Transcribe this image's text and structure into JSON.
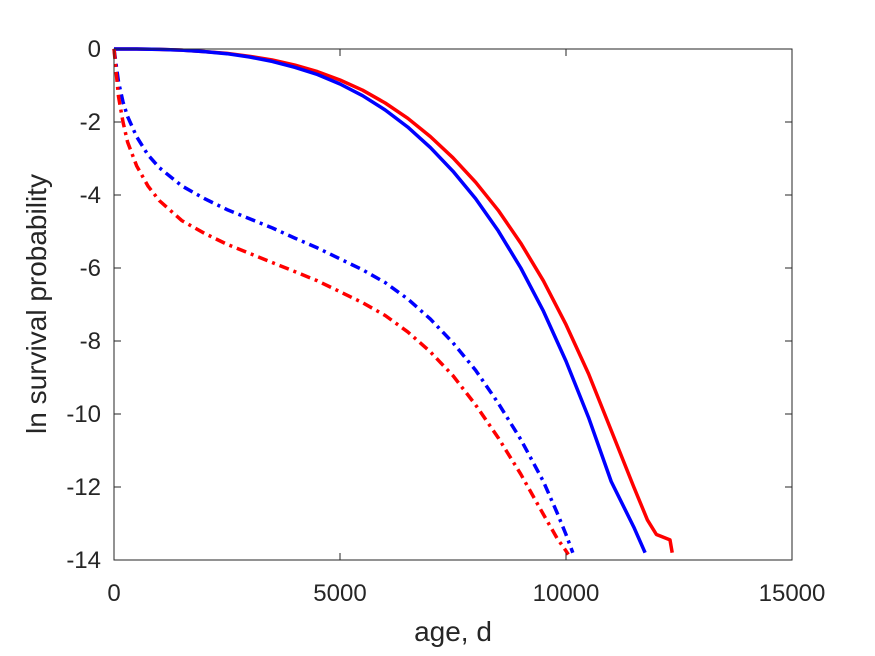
{
  "chart_data": {
    "type": "line",
    "title": "",
    "xlabel": "age, d",
    "ylabel": "ln survival probability",
    "xlim": [
      0,
      15000
    ],
    "ylim": [
      -14,
      0
    ],
    "xticks": [
      0,
      5000,
      10000,
      15000
    ],
    "yticks": [
      0,
      -2,
      -4,
      -6,
      -8,
      -10,
      -12,
      -14
    ],
    "grid": false,
    "legend": "none",
    "box": true,
    "series": [
      {
        "color": "#ff0000",
        "style": "solid",
        "x": [
          0,
          500,
          1000,
          1500,
          2000,
          2500,
          3000,
          3500,
          4000,
          4500,
          5000,
          5500,
          6000,
          6500,
          7000,
          7500,
          8000,
          8500,
          9000,
          9500,
          10000,
          10500,
          11000,
          11500,
          11800,
          12000,
          12100,
          12300,
          12350
        ],
        "y": [
          0,
          0,
          -0.01,
          -0.03,
          -0.07,
          -0.12,
          -0.2,
          -0.3,
          -0.44,
          -0.62,
          -0.85,
          -1.13,
          -1.48,
          -1.9,
          -2.4,
          -2.98,
          -3.65,
          -4.42,
          -5.32,
          -6.35,
          -7.55,
          -8.9,
          -10.45,
          -12.0,
          -12.9,
          -13.3,
          -13.35,
          -13.45,
          -13.8
        ]
      },
      {
        "color": "#0000ff",
        "style": "solid",
        "x": [
          0,
          500,
          1000,
          1500,
          2000,
          2500,
          3000,
          3500,
          4000,
          4500,
          5000,
          5500,
          6000,
          6500,
          7000,
          7500,
          8000,
          8500,
          9000,
          9500,
          10000,
          10500,
          11000,
          11500,
          11750
        ],
        "y": [
          0,
          0,
          -0.01,
          -0.03,
          -0.07,
          -0.13,
          -0.22,
          -0.34,
          -0.5,
          -0.7,
          -0.96,
          -1.28,
          -1.67,
          -2.14,
          -2.7,
          -3.35,
          -4.1,
          -4.98,
          -6.0,
          -7.18,
          -8.55,
          -10.1,
          -11.85,
          -13.1,
          -13.8
        ]
      },
      {
        "color": "#0000ff",
        "style": "dashdot",
        "x": [
          0,
          100,
          200,
          300,
          500,
          750,
          1000,
          1500,
          2000,
          2500,
          3000,
          3500,
          4000,
          4500,
          5000,
          5500,
          6000,
          6500,
          7000,
          7500,
          8000,
          8500,
          9000,
          9500,
          9800,
          10000,
          10150
        ],
        "y": [
          0,
          -0.9,
          -1.45,
          -1.85,
          -2.4,
          -2.9,
          -3.25,
          -3.75,
          -4.1,
          -4.4,
          -4.65,
          -4.9,
          -5.18,
          -5.45,
          -5.75,
          -6.05,
          -6.4,
          -6.85,
          -7.4,
          -8.05,
          -8.8,
          -9.7,
          -10.7,
          -11.85,
          -12.7,
          -13.3,
          -13.8
        ]
      },
      {
        "color": "#ff0000",
        "style": "dashdot",
        "x": [
          0,
          100,
          200,
          300,
          500,
          750,
          1000,
          1500,
          2000,
          2500,
          3000,
          3500,
          4000,
          4500,
          5000,
          5500,
          6000,
          6500,
          7000,
          7500,
          8000,
          8500,
          9000,
          9500,
          9800,
          10000,
          10050
        ],
        "y": [
          0,
          -1.3,
          -2.0,
          -2.55,
          -3.2,
          -3.75,
          -4.15,
          -4.7,
          -5.05,
          -5.35,
          -5.6,
          -5.85,
          -6.1,
          -6.35,
          -6.65,
          -6.95,
          -7.3,
          -7.75,
          -8.3,
          -8.95,
          -9.75,
          -10.65,
          -11.65,
          -12.75,
          -13.4,
          -13.75,
          -13.85
        ]
      }
    ]
  }
}
